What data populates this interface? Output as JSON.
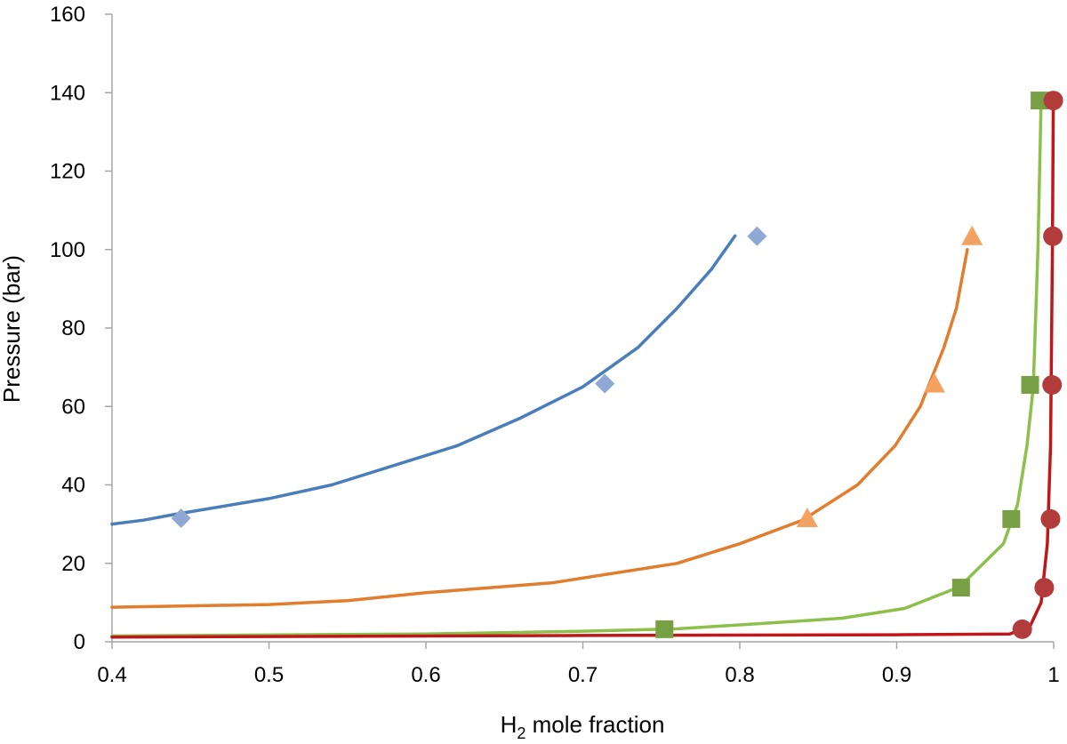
{
  "chart_data": {
    "type": "scatter",
    "title": "",
    "xlabel": {
      "main": "H",
      "sub": "2",
      "rest": " mole fraction"
    },
    "ylabel": "Pressure (bar)",
    "xlim": [
      0.4,
      1.0
    ],
    "ylim": [
      0,
      160
    ],
    "xticks": [
      "0.4",
      "0.5",
      "0.6",
      "0.7",
      "0.8",
      "0.9",
      "1"
    ],
    "yticks": [
      "0",
      "20",
      "40",
      "60",
      "80",
      "100",
      "120",
      "140",
      "160"
    ],
    "grid": false,
    "legend": "none",
    "series": [
      {
        "color": "#4a7ebb",
        "marker_color": "#8fa8d6",
        "marker": "diamond",
        "points": [
          {
            "x": 0.444,
            "y": 31.5
          },
          {
            "x": 0.714,
            "y": 65.8
          },
          {
            "x": 0.811,
            "y": 103.4
          }
        ],
        "line": [
          {
            "x": 0.4,
            "y": 30
          },
          {
            "x": 0.42,
            "y": 31
          },
          {
            "x": 0.44,
            "y": 32.5
          },
          {
            "x": 0.5,
            "y": 36.5
          },
          {
            "x": 0.54,
            "y": 40
          },
          {
            "x": 0.58,
            "y": 45
          },
          {
            "x": 0.62,
            "y": 50
          },
          {
            "x": 0.66,
            "y": 57
          },
          {
            "x": 0.7,
            "y": 65
          },
          {
            "x": 0.735,
            "y": 75
          },
          {
            "x": 0.76,
            "y": 85
          },
          {
            "x": 0.782,
            "y": 95
          },
          {
            "x": 0.797,
            "y": 103.5
          }
        ]
      },
      {
        "color": "#e27d2e",
        "marker_color": "#f4a261",
        "marker": "triangle",
        "points": [
          {
            "x": 0.843,
            "y": 31.5
          },
          {
            "x": 0.924,
            "y": 65.8
          },
          {
            "x": 0.948,
            "y": 103.4
          }
        ],
        "line": [
          {
            "x": 0.4,
            "y": 8.8
          },
          {
            "x": 0.5,
            "y": 9.5
          },
          {
            "x": 0.55,
            "y": 10.5
          },
          {
            "x": 0.6,
            "y": 12.5
          },
          {
            "x": 0.68,
            "y": 15
          },
          {
            "x": 0.76,
            "y": 20
          },
          {
            "x": 0.8,
            "y": 25
          },
          {
            "x": 0.84,
            "y": 31
          },
          {
            "x": 0.875,
            "y": 40
          },
          {
            "x": 0.899,
            "y": 50
          },
          {
            "x": 0.915,
            "y": 60
          },
          {
            "x": 0.93,
            "y": 75
          },
          {
            "x": 0.938,
            "y": 85
          },
          {
            "x": 0.945,
            "y": 100
          }
        ]
      },
      {
        "color": "#8cc04b",
        "marker_color": "#77a045",
        "marker": "square",
        "points": [
          {
            "x": 0.752,
            "y": 3.2
          },
          {
            "x": 0.941,
            "y": 13.8
          },
          {
            "x": 0.973,
            "y": 31.3
          },
          {
            "x": 0.985,
            "y": 65.5
          },
          {
            "x": 0.991,
            "y": 138
          }
        ],
        "line": [
          {
            "x": 0.4,
            "y": 1.5
          },
          {
            "x": 0.6,
            "y": 2
          },
          {
            "x": 0.7,
            "y": 2.7
          },
          {
            "x": 0.76,
            "y": 3.3
          },
          {
            "x": 0.82,
            "y": 4.8
          },
          {
            "x": 0.865,
            "y": 6
          },
          {
            "x": 0.905,
            "y": 8.5
          },
          {
            "x": 0.94,
            "y": 14
          },
          {
            "x": 0.968,
            "y": 25
          },
          {
            "x": 0.977,
            "y": 35
          },
          {
            "x": 0.983,
            "y": 50
          },
          {
            "x": 0.987,
            "y": 65
          },
          {
            "x": 0.99,
            "y": 100
          },
          {
            "x": 0.992,
            "y": 138
          }
        ]
      },
      {
        "color": "#c0171b",
        "marker_color": "#b23b3b",
        "marker": "circle",
        "points": [
          {
            "x": 0.98,
            "y": 3.2
          },
          {
            "x": 0.994,
            "y": 13.8
          },
          {
            "x": 0.998,
            "y": 31.3
          },
          {
            "x": 0.999,
            "y": 65.5
          },
          {
            "x": 0.9995,
            "y": 103.4
          },
          {
            "x": 0.9998,
            "y": 138
          }
        ],
        "line": [
          {
            "x": 0.4,
            "y": 1.2
          },
          {
            "x": 0.7,
            "y": 1.6
          },
          {
            "x": 0.9,
            "y": 1.8
          },
          {
            "x": 0.972,
            "y": 2
          },
          {
            "x": 0.985,
            "y": 4
          },
          {
            "x": 0.992,
            "y": 10
          },
          {
            "x": 0.996,
            "y": 25
          },
          {
            "x": 0.998,
            "y": 50
          },
          {
            "x": 0.9992,
            "y": 100
          },
          {
            "x": 0.9998,
            "y": 138
          }
        ]
      }
    ]
  }
}
